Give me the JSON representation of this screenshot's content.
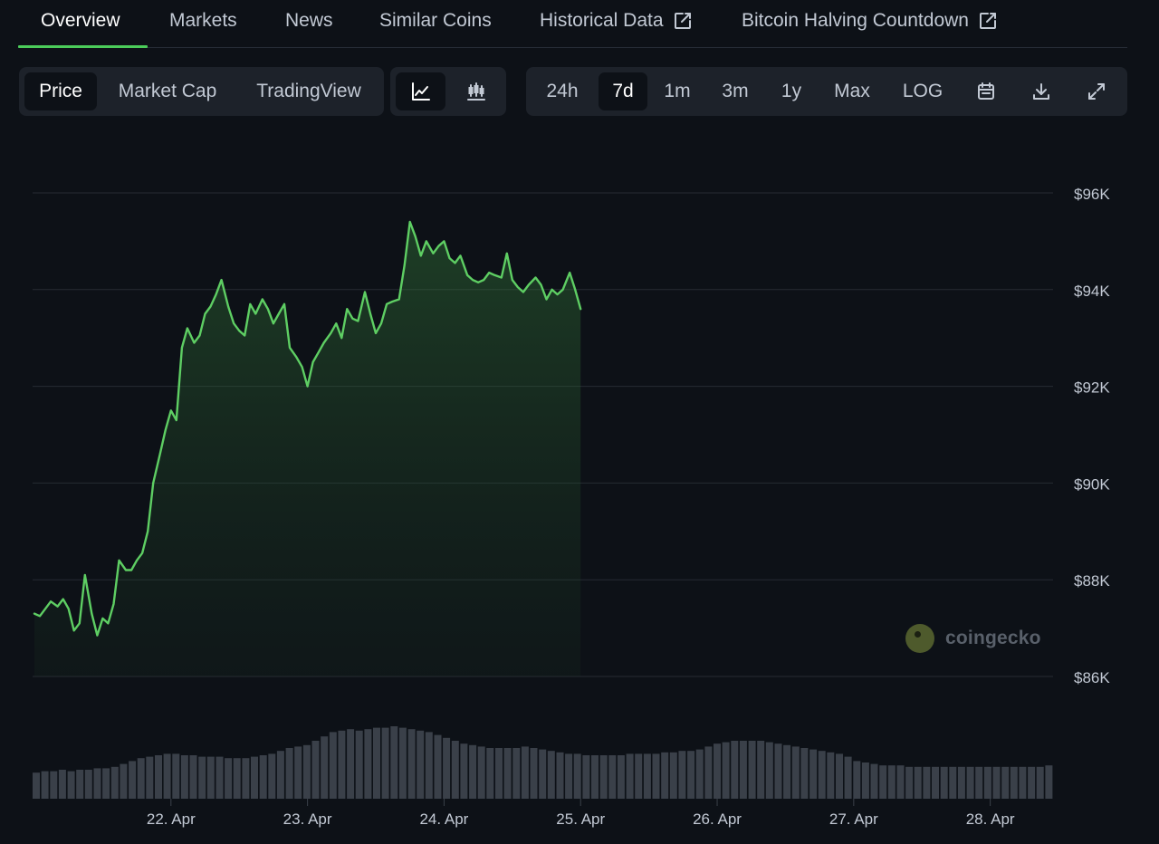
{
  "tabs": [
    {
      "label": "Overview",
      "active": true
    },
    {
      "label": "Markets"
    },
    {
      "label": "News"
    },
    {
      "label": "Similar Coins"
    },
    {
      "label": "Historical Data",
      "external": true
    },
    {
      "label": "Bitcoin Halving Countdown",
      "external": true
    }
  ],
  "chart_type_tabs": [
    "Price",
    "Market Cap",
    "TradingView"
  ],
  "active_chart_type": "Price",
  "view_mode_icons": [
    "line-chart-icon",
    "candlestick-icon"
  ],
  "active_view_mode": "line-chart-icon",
  "time_ranges": [
    "24h",
    "7d",
    "1m",
    "3m",
    "1y",
    "Max",
    "LOG"
  ],
  "active_time_range": "7d",
  "toolbar_icons": [
    "calendar-icon",
    "download-icon",
    "fullscreen-icon"
  ],
  "watermark": "coingecko",
  "colors": {
    "background": "#0d1117",
    "accent_green": "#4bcc5a",
    "line": "#5ece63",
    "volume_bar": "#3a4049"
  },
  "chart_data": {
    "type": "area",
    "y_ticks": [
      "$96K",
      "$94K",
      "$92K",
      "$90K",
      "$88K",
      "$86K"
    ],
    "ylim": [
      86000,
      96000
    ],
    "x_ticks": [
      "22. Apr",
      "23. Apr",
      "24. Apr",
      "25. Apr",
      "26. Apr",
      "27. Apr",
      "28. Apr"
    ],
    "x_domain_days": [
      21.0,
      28.44
    ],
    "x_tick_days": [
      22,
      23,
      24,
      25,
      26,
      27,
      28
    ],
    "grid": true,
    "series": [
      {
        "values": [
          [
            21.0,
            87300
          ],
          [
            21.04,
            87250
          ],
          [
            21.08,
            87400
          ],
          [
            21.12,
            87550
          ],
          [
            21.17,
            87450
          ],
          [
            21.21,
            87600
          ],
          [
            21.25,
            87400
          ],
          [
            21.29,
            86950
          ],
          [
            21.33,
            87100
          ],
          [
            21.37,
            88100
          ],
          [
            21.42,
            87300
          ],
          [
            21.46,
            86850
          ],
          [
            21.5,
            87200
          ],
          [
            21.54,
            87100
          ],
          [
            21.58,
            87500
          ],
          [
            21.62,
            88400
          ],
          [
            21.67,
            88200
          ],
          [
            21.71,
            88200
          ],
          [
            21.75,
            88400
          ],
          [
            21.79,
            88550
          ],
          [
            21.83,
            89000
          ],
          [
            21.87,
            90000
          ],
          [
            21.92,
            90600
          ],
          [
            21.96,
            91100
          ],
          [
            22.0,
            91500
          ],
          [
            22.04,
            91300
          ],
          [
            22.08,
            92800
          ],
          [
            22.12,
            93200
          ],
          [
            22.17,
            92900
          ],
          [
            22.21,
            93050
          ],
          [
            22.25,
            93500
          ],
          [
            22.29,
            93650
          ],
          [
            22.33,
            93900
          ],
          [
            22.37,
            94200
          ],
          [
            22.42,
            93650
          ],
          [
            22.46,
            93300
          ],
          [
            22.5,
            93150
          ],
          [
            22.54,
            93050
          ],
          [
            22.58,
            93700
          ],
          [
            22.62,
            93500
          ],
          [
            22.67,
            93800
          ],
          [
            22.71,
            93600
          ],
          [
            22.75,
            93300
          ],
          [
            22.79,
            93500
          ],
          [
            22.83,
            93700
          ],
          [
            22.87,
            92800
          ],
          [
            22.92,
            92600
          ],
          [
            22.96,
            92400
          ],
          [
            23.0,
            92000
          ],
          [
            23.04,
            92500
          ],
          [
            23.08,
            92700
          ],
          [
            23.12,
            92900
          ],
          [
            23.17,
            93100
          ],
          [
            23.21,
            93300
          ],
          [
            23.25,
            93000
          ],
          [
            23.29,
            93600
          ],
          [
            23.33,
            93400
          ],
          [
            23.37,
            93350
          ],
          [
            23.42,
            93950
          ],
          [
            23.46,
            93500
          ],
          [
            23.5,
            93100
          ],
          [
            23.54,
            93300
          ],
          [
            23.58,
            93700
          ],
          [
            23.62,
            93750
          ],
          [
            23.67,
            93800
          ],
          [
            23.71,
            94500
          ],
          [
            23.75,
            95400
          ],
          [
            23.79,
            95100
          ],
          [
            23.83,
            94700
          ],
          [
            23.87,
            95000
          ],
          [
            23.92,
            94750
          ],
          [
            23.96,
            94900
          ],
          [
            24.0,
            95000
          ],
          [
            24.04,
            94650
          ],
          [
            24.08,
            94550
          ],
          [
            24.12,
            94700
          ],
          [
            24.17,
            94300
          ],
          [
            24.21,
            94200
          ],
          [
            24.25,
            94150
          ],
          [
            24.29,
            94200
          ],
          [
            24.33,
            94350
          ],
          [
            24.37,
            94300
          ],
          [
            24.42,
            94250
          ],
          [
            24.46,
            94750
          ],
          [
            24.5,
            94200
          ],
          [
            24.54,
            94050
          ],
          [
            24.58,
            93950
          ],
          [
            24.62,
            94100
          ],
          [
            24.67,
            94250
          ],
          [
            24.71,
            94100
          ],
          [
            24.75,
            93800
          ],
          [
            24.79,
            94000
          ],
          [
            24.83,
            93900
          ],
          [
            24.87,
            94000
          ],
          [
            24.92,
            94350
          ],
          [
            24.96,
            94000
          ],
          [
            25.0,
            93600
          ]
        ]
      }
    ],
    "volume": [
      18,
      19,
      19,
      20,
      19,
      20,
      20,
      21,
      21,
      22,
      24,
      26,
      28,
      29,
      30,
      31,
      31,
      30,
      30,
      29,
      29,
      29,
      28,
      28,
      28,
      29,
      30,
      31,
      33,
      35,
      36,
      37,
      40,
      43,
      46,
      47,
      48,
      47,
      48,
      49,
      49,
      50,
      49,
      48,
      47,
      46,
      44,
      42,
      40,
      38,
      37,
      36,
      35,
      35,
      35,
      35,
      36,
      35,
      34,
      33,
      32,
      31,
      31,
      30,
      30,
      30,
      30,
      30,
      31,
      31,
      31,
      31,
      32,
      32,
      33,
      33,
      34,
      36,
      38,
      39,
      40,
      40,
      40,
      40,
      39,
      38,
      37,
      36,
      35,
      34,
      33,
      32,
      31,
      29,
      26,
      25,
      24,
      23,
      23,
      23,
      22,
      22,
      22,
      22,
      22,
      22,
      22,
      22,
      22,
      22,
      22,
      22,
      22,
      22,
      22,
      22,
      23
    ]
  }
}
